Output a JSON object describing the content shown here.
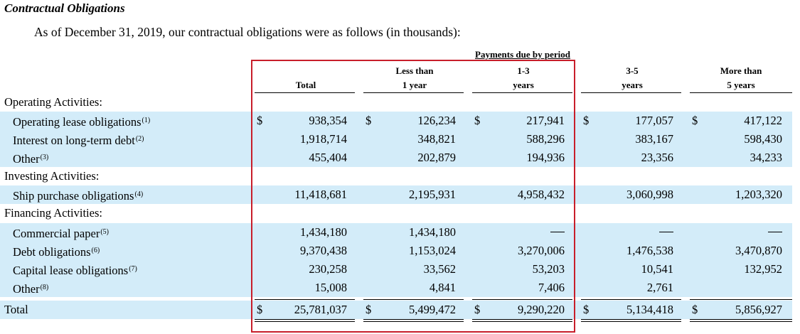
{
  "section_title": "Contractual Obligations",
  "intro": "As of December 31, 2019, our contractual obligations were as follows (in thousands):",
  "header": {
    "period_title": "Payments due by period",
    "col_total": "Total",
    "col_less1_l1": "Less than",
    "col_less1_l2": "1 year",
    "col_1_3_l1": "1-3",
    "col_1_3_l2": "years",
    "col_3_5_l1": "3-5",
    "col_3_5_l2": "years",
    "col_more5_l1": "More than",
    "col_more5_l2": "5 years"
  },
  "currency_symbol": "$",
  "dash_symbol": "—",
  "rows": [
    {
      "type": "heading",
      "label": "Operating Activities:"
    },
    {
      "type": "data",
      "label": "Operating lease obligations",
      "note": "(1)",
      "dollar": true,
      "values": [
        "938,354",
        "126,234",
        "217,941",
        "177,057",
        "417,122"
      ]
    },
    {
      "type": "data",
      "label": "Interest on long-term debt",
      "note": "(2)",
      "dollar": false,
      "values": [
        "1,918,714",
        "348,821",
        "588,296",
        "383,167",
        "598,430"
      ]
    },
    {
      "type": "data",
      "label": "Other",
      "note": "(3)",
      "dollar": false,
      "values": [
        "455,404",
        "202,879",
        "194,936",
        "23,356",
        "34,233"
      ]
    },
    {
      "type": "heading",
      "label": "Investing Activities:"
    },
    {
      "type": "data",
      "label": "Ship purchase obligations",
      "note": "(4)",
      "dollar": false,
      "values": [
        "11,418,681",
        "2,195,931",
        "4,958,432",
        "3,060,998",
        "1,203,320"
      ]
    },
    {
      "type": "heading",
      "label": "Financing Activities:"
    },
    {
      "type": "data",
      "label": "Commercial paper",
      "note": "(5)",
      "dollar": false,
      "values": [
        "1,434,180",
        "1,434,180",
        "—",
        "—",
        "—"
      ]
    },
    {
      "type": "data",
      "label": "Debt obligations",
      "note": "(6)",
      "dollar": false,
      "values": [
        "9,370,438",
        "1,153,024",
        "3,270,006",
        "1,476,538",
        "3,470,870"
      ]
    },
    {
      "type": "data",
      "label": "Capital lease obligations",
      "note": "(7)",
      "dollar": false,
      "values": [
        "230,258",
        "33,562",
        "53,203",
        "10,541",
        "132,952"
      ]
    },
    {
      "type": "data",
      "label": "Other",
      "note": "(8)",
      "dollar": false,
      "values": [
        "15,008",
        "4,841",
        "7,406",
        "2,761",
        ""
      ]
    },
    {
      "type": "total",
      "label": "Total",
      "note": "",
      "dollar": true,
      "values": [
        "25,781,037",
        "5,499,472",
        "9,290,220",
        "5,134,418",
        "5,856,927"
      ]
    }
  ]
}
